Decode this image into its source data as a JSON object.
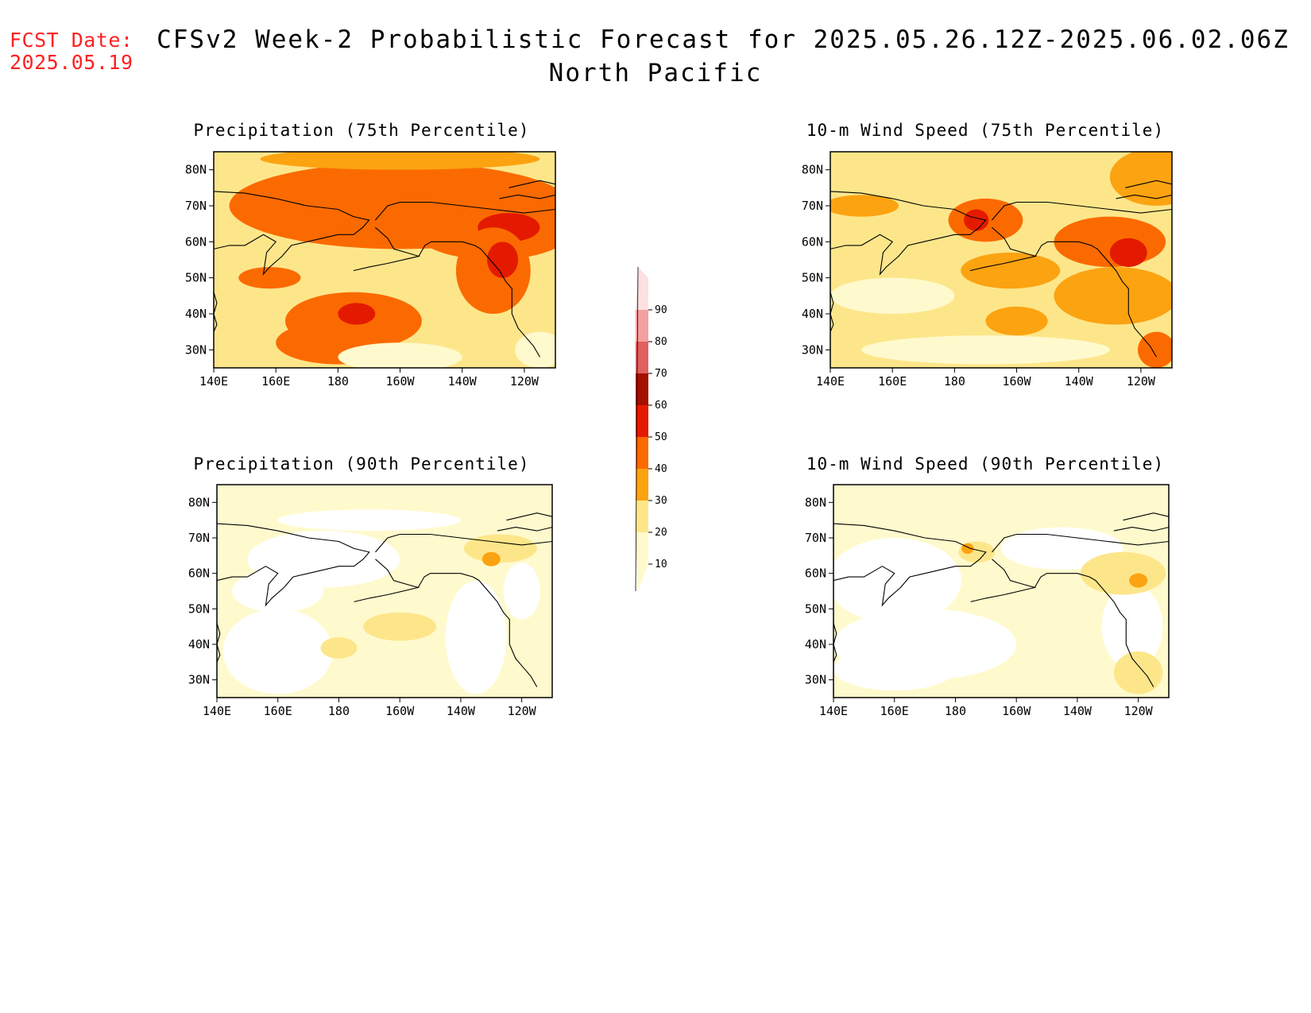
{
  "header": {
    "fcst_label": "FCST Date:",
    "fcst_date": "2025.05.19",
    "title": "CFSv2 Week-2 Probabilistic Forecast for 2025.05.26.12Z-2025.06.02.06Z",
    "subtitle": "North Pacific"
  },
  "panels": [
    {
      "title": "Precipitation (75th Percentile)",
      "base_level": 20
    },
    {
      "title": "10-m Wind Speed (75th Percentile)",
      "base_level": 20
    },
    {
      "title": "Precipitation (90th Percentile)",
      "base_level": 10
    },
    {
      "title": "10-m Wind Speed (90th Percentile)",
      "base_level": 10
    }
  ],
  "axes": {
    "lat_labels": [
      "80N",
      "70N",
      "60N",
      "50N",
      "40N",
      "30N"
    ],
    "lat_values": [
      80,
      70,
      60,
      50,
      40,
      30
    ],
    "lon_labels": [
      "140E",
      "160E",
      "180",
      "160W",
      "140W",
      "120W"
    ],
    "lon_values": [
      140,
      160,
      180,
      200,
      220,
      240
    ],
    "lon_range": [
      140,
      250
    ],
    "lat_range": [
      25,
      85
    ]
  },
  "colorbar": {
    "levels": [
      "10",
      "20",
      "30",
      "40",
      "50",
      "60",
      "70",
      "80",
      "90"
    ],
    "colors": [
      "#fffacd",
      "#fde68a",
      "#fca311",
      "#fb6a00",
      "#e31a00",
      "#a50f00",
      "#e06060",
      "#f5a0a0",
      "#fde0e0"
    ]
  }
}
